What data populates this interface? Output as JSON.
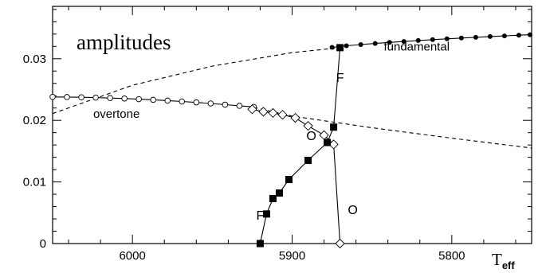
{
  "chart_data": {
    "type": "line",
    "title": "amplitudes",
    "xlabel": {
      "main": "T",
      "sub": "eff"
    },
    "ylabel": "",
    "xlim": [
      6050,
      5750
    ],
    "ylim": [
      0,
      0.0385
    ],
    "x_reversed": true,
    "grid": false,
    "x_ticks": [
      6000,
      5900,
      5800
    ],
    "y_ticks": [
      0,
      0.01,
      0.02,
      0.03
    ],
    "x_tick_labels": [
      "6000",
      "5900",
      "5800"
    ],
    "y_tick_labels": [
      "0",
      "0.01",
      "0.02",
      "0.03"
    ],
    "annotations": [
      {
        "text": "fundamental",
        "x": 5822,
        "y": 0.0313
      },
      {
        "text": "overtone",
        "x": 6010,
        "y": 0.0204
      },
      {
        "text": "F",
        "x": 5870,
        "y": 0.0262
      },
      {
        "text": "O",
        "x": 5888,
        "y": 0.0168
      },
      {
        "text": "F",
        "x": 5920,
        "y": 0.0039
      },
      {
        "text": "O",
        "x": 5862,
        "y": 0.0048
      }
    ],
    "series": [
      {
        "role": "fundamental-stable",
        "marker": "filled-circle",
        "style": "solid",
        "x": [
          5875,
          5866,
          5857,
          5848,
          5839,
          5830,
          5821,
          5812,
          5803,
          5794,
          5785,
          5776,
          5767,
          5758,
          5751
        ],
        "y": [
          0.03185,
          0.0321,
          0.0323,
          0.03248,
          0.03265,
          0.0328,
          0.03296,
          0.0331,
          0.03323,
          0.03336,
          0.03348,
          0.0336,
          0.03371,
          0.03382,
          0.0339
        ]
      },
      {
        "role": "overtone-stable",
        "marker": "open-circle",
        "style": "solid",
        "x": [
          6050,
          6041,
          6032,
          6023,
          6014,
          6005,
          5996,
          5987,
          5978,
          5969,
          5960,
          5951,
          5942,
          5933,
          5924
        ],
        "y": [
          0.0238,
          0.02378,
          0.02374,
          0.02369,
          0.02362,
          0.02354,
          0.02344,
          0.02333,
          0.0232,
          0.02306,
          0.02291,
          0.02274,
          0.02255,
          0.02236,
          0.02218
        ]
      },
      {
        "role": "overtone-branch",
        "marker": "open-diamond",
        "style": "solid",
        "x": [
          5925,
          5918,
          5912,
          5906,
          5898,
          5890,
          5880,
          5874,
          5870
        ],
        "y": [
          0.0218,
          0.0214,
          0.0212,
          0.0209,
          0.0204,
          0.0191,
          0.0176,
          0.0161,
          0.0
        ]
      },
      {
        "role": "fundamental-branch",
        "marker": "filled-square",
        "style": "solid",
        "x": [
          5920,
          5916,
          5912,
          5908,
          5902,
          5890,
          5878,
          5874,
          5870
        ],
        "y": [
          0.0,
          0.0048,
          0.0073,
          0.0082,
          0.0104,
          0.0135,
          0.0164,
          0.0189,
          0.0318
        ]
      },
      {
        "role": "fundamental-extrapolated",
        "marker": "none",
        "style": "dashed",
        "x": [
          6050,
          6000,
          5950,
          5900,
          5870
        ],
        "y": [
          0.0211,
          0.0257,
          0.0288,
          0.031,
          0.0318
        ]
      },
      {
        "role": "overtone-extrapolated",
        "marker": "none",
        "style": "dashed",
        "x": [
          5924,
          5900,
          5850,
          5800,
          5750
        ],
        "y": [
          0.0221,
          0.0207,
          0.0188,
          0.0171,
          0.0155
        ]
      }
    ]
  }
}
